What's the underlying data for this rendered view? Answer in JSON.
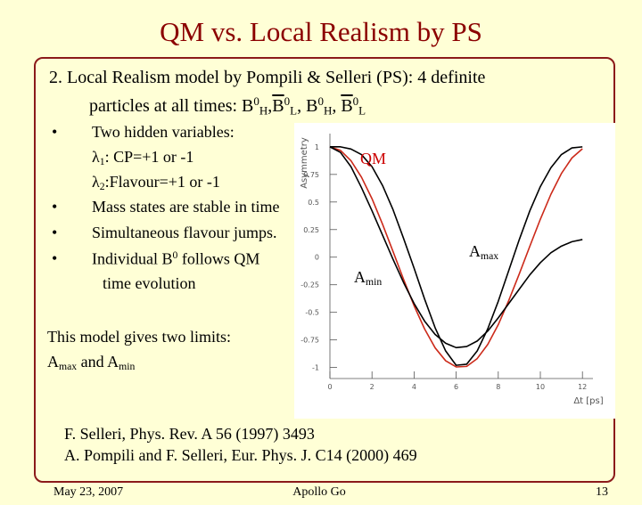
{
  "title": "QM vs. Local Realism by PS",
  "heading": {
    "lines": [
      {
        "parts": [
          {
            "t": "2. Local Realism model by Pompili & Selleri (PS): 4 definite"
          }
        ]
      },
      {
        "parts": [
          {
            "t": "particles at all times: B"
          },
          {
            "sup": "0"
          },
          {
            "sub": "H"
          },
          {
            "t": ","
          },
          {
            "t": "B",
            "bar": true
          },
          {
            "sup": "0"
          },
          {
            "sub": "L"
          },
          {
            "t": ", B"
          },
          {
            "sup": "0"
          },
          {
            "sub": "H"
          },
          {
            "t": ", "
          },
          {
            "t": "B",
            "bar": true
          },
          {
            "sup": "0"
          },
          {
            "sub": "L"
          }
        ]
      }
    ]
  },
  "items": [
    {
      "bullet": true,
      "parts": [
        {
          "t": "Two hidden variables:"
        }
      ]
    },
    {
      "bullet": false,
      "parts": [
        {
          "t": "λ"
        },
        {
          "sub": "1"
        },
        {
          "t": ": CP=+1 or -1"
        }
      ]
    },
    {
      "bullet": false,
      "parts": [
        {
          "t": "λ"
        },
        {
          "sub": "2"
        },
        {
          "t": ":Flavour=+1 or -1"
        }
      ]
    },
    {
      "bullet": true,
      "parts": [
        {
          "t": "Mass states are stable in time"
        }
      ]
    },
    {
      "bullet": true,
      "parts": [
        {
          "t": "Simultaneous flavour jumps."
        }
      ]
    },
    {
      "bullet": true,
      "parts": [
        {
          "t": "Individual B"
        },
        {
          "sup": "0"
        },
        {
          "t": " follows QM"
        }
      ]
    },
    {
      "bullet": false,
      "parts": [
        {
          "t": "time evolution"
        }
      ]
    }
  ],
  "summary": {
    "lines": [
      {
        "parts": [
          {
            "t": "This model gives two limits:"
          }
        ]
      },
      {
        "parts": [
          {
            "t": "A"
          },
          {
            "sub": "max"
          },
          {
            "t": " and A"
          },
          {
            "sub": "min"
          }
        ]
      }
    ]
  },
  "references": [
    "F. Selleri, Phys. Rev. A 56 (1997) 3493",
    "A. Pompili and F. Selleri, Eur. Phys. J. C14 (2000) 469"
  ],
  "footer": {
    "date": "May 23, 2007",
    "presenter": "Apollo Go",
    "page": "13"
  },
  "chart_data": {
    "type": "line",
    "xlabel": "Δt [ps]",
    "ylabel": "Asymmetry",
    "x": [
      0,
      0.5,
      1,
      1.5,
      2,
      2.5,
      3,
      3.5,
      4,
      4.5,
      5,
      5.5,
      6,
      6.5,
      7,
      7.5,
      8,
      8.5,
      9,
      9.5,
      10,
      10.5,
      11,
      11.5,
      12
    ],
    "series": [
      {
        "color": "#cc2a1a",
        "values": [
          1,
          0.968,
          0.874,
          0.725,
          0.53,
          0.299,
          0.051,
          -0.201,
          -0.44,
          -0.651,
          -0.822,
          -0.939,
          -0.995,
          -0.99,
          -0.919,
          -0.791,
          -0.612,
          -0.392,
          -0.151,
          0.099,
          0.344,
          0.569,
          0.758,
          0.899,
          0.983
        ]
      },
      {
        "color": "#000000",
        "values": [
          1,
          1,
          0.98,
          0.93,
          0.82,
          0.65,
          0.43,
          0.17,
          -0.1,
          -0.38,
          -0.64,
          -0.85,
          -0.98,
          -0.97,
          -0.85,
          -0.65,
          -0.4,
          -0.12,
          0.16,
          0.42,
          0.64,
          0.81,
          0.93,
          0.99,
          1.0
        ]
      },
      {
        "color": "#000000",
        "values": [
          1,
          0.95,
          0.82,
          0.63,
          0.42,
          0.2,
          -0.02,
          -0.23,
          -0.42,
          -0.58,
          -0.7,
          -0.78,
          -0.82,
          -0.81,
          -0.76,
          -0.67,
          -0.55,
          -0.42,
          -0.29,
          -0.16,
          -0.05,
          0.04,
          0.1,
          0.14,
          0.16
        ]
      }
    ],
    "annotations": [
      {
        "color": "#cc0000",
        "parts": [
          {
            "t": "QM"
          }
        ]
      },
      {
        "color": "#000000",
        "parts": [
          {
            "t": "A"
          },
          {
            "sub": "max"
          }
        ]
      },
      {
        "color": "#000000",
        "parts": [
          {
            "t": "A"
          },
          {
            "sub": "min"
          }
        ]
      }
    ],
    "xlim": [
      0,
      12.5
    ],
    "xticks": [
      0,
      2,
      4,
      6,
      8,
      10,
      12
    ],
    "ylim": [
      -1.1,
      1.12
    ],
    "yticks": [
      -1,
      -0.75,
      -0.5,
      -0.25,
      0,
      0.25,
      0.5,
      0.75,
      1
    ]
  }
}
